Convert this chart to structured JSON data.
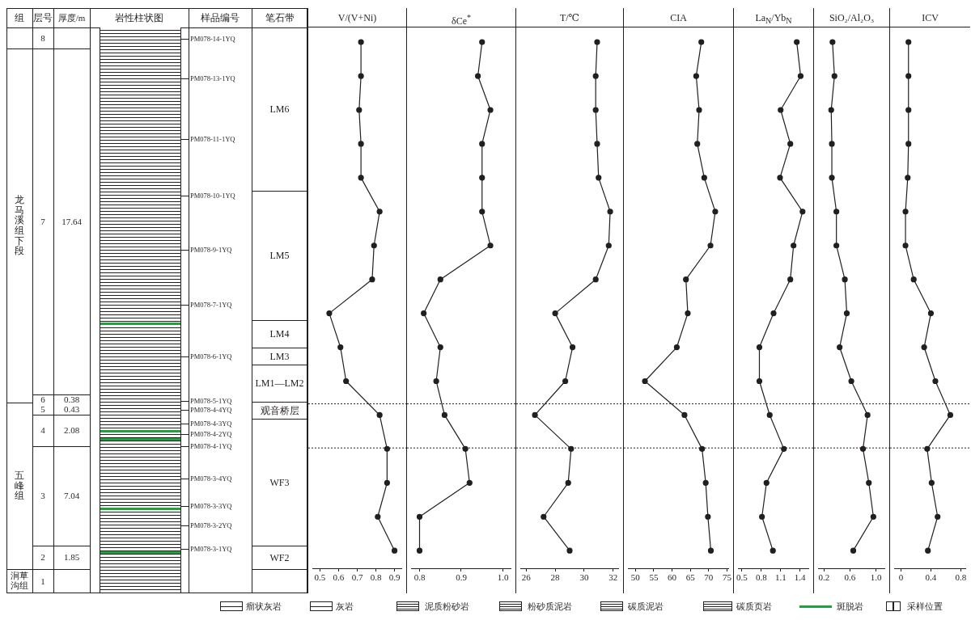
{
  "chart_data": [
    {
      "type": "other",
      "annotations": [
        "组",
        "层号",
        "厚度/m",
        "岩性柱状图",
        "样品编号",
        "笔石带",
        "龙马溪组下段",
        "五峰组",
        "涧草沟组",
        "8",
        "7",
        "6",
        "5",
        "4",
        "3",
        "2",
        "1",
        "17.64",
        "0.38",
        "0.43",
        "2.08",
        "7.04",
        "1.85",
        "PM078-14-1YQ",
        "PM078-13-1YQ",
        "PM078-11-1YQ",
        "PM078-10-1YQ",
        "PM078-9-1YQ",
        "PM078-7-1YQ",
        "PM078-6-1YQ",
        "PM078-5-1YQ",
        "PM078-4-4YQ",
        "PM078-4-3YQ",
        "PM078-4-2YQ",
        "PM078-4-1YQ",
        "PM078-3-4YQ",
        "PM078-3-3YQ",
        "PM078-3-2YQ",
        "PM078-3-1YQ",
        "LM6",
        "LM5",
        "LM4",
        "LM3",
        "LM1—LM2",
        "观音桥层",
        "WF3",
        "WF2",
        "瘤状灰岩",
        "灰岩",
        "泥质粉砂岩",
        "粉砂质泥岩",
        "碳质泥岩",
        "碳质页岩",
        "斑脱岩",
        "采样位置"
      ]
    },
    {
      "type": "line",
      "title": "V/(V+Ni)",
      "orientation": "horizontal",
      "categories": [
        null,
        null,
        null,
        null,
        null,
        null,
        null,
        null,
        null,
        null,
        null,
        null,
        null,
        null,
        null,
        null
      ],
      "tick_labels": "x",
      "color": "#231f20",
      "marker": "circle",
      "line_style": "solid",
      "grid": false,
      "legend": false,
      "values": [
        0.72,
        0.72,
        0.71,
        0.72,
        0.72,
        0.82,
        0.79,
        0.78,
        0.55,
        0.61,
        0.64,
        0.82,
        0.86,
        0.86,
        0.81,
        0.9
      ],
      "xlim": [
        0.46,
        0.94
      ],
      "xticks": [
        0.5,
        0.6,
        0.7,
        0.8,
        0.9
      ]
    },
    {
      "type": "line",
      "title": "δCe$^{*}$",
      "orientation": "horizontal",
      "categories": [
        null,
        null,
        null,
        null,
        null,
        null,
        null,
        null,
        null,
        null,
        null,
        null,
        null,
        null,
        null,
        null
      ],
      "tick_labels": "x",
      "color": "#231f20",
      "marker": "circle",
      "line_style": "solid",
      "grid": false,
      "legend": false,
      "values": [
        0.95,
        0.94,
        0.97,
        0.95,
        0.95,
        0.95,
        0.97,
        0.85,
        0.81,
        0.85,
        0.84,
        0.86,
        0.91,
        0.92,
        0.8,
        0.8
      ],
      "xlim": [
        0.78,
        1.02
      ],
      "xticks": [
        0.8,
        0.9,
        {
          "value": 1,
          "label": "1.0"
        }
      ]
    },
    {
      "type": "line",
      "title": "T/℃",
      "orientation": "horizontal",
      "categories": [
        null,
        null,
        null,
        null,
        null,
        null,
        null,
        null,
        null,
        null,
        null,
        null,
        null,
        null,
        null,
        null
      ],
      "tick_labels": "x",
      "color": "#231f20",
      "marker": "circle",
      "line_style": "solid",
      "grid": false,
      "legend": false,
      "values": [
        30.9,
        30.8,
        30.8,
        30.9,
        31.0,
        31.8,
        31.7,
        30.8,
        28.0,
        29.2,
        28.7,
        26.6,
        29.1,
        28.9,
        27.2,
        29.0
      ],
      "xlim": [
        25.6,
        32.4
      ],
      "xticks": [
        26,
        28,
        30,
        32
      ]
    },
    {
      "type": "line",
      "title": "CIA",
      "orientation": "horizontal",
      "categories": [
        null,
        null,
        null,
        null,
        null,
        null,
        null,
        null,
        null,
        null,
        null,
        null,
        null,
        null,
        null,
        null
      ],
      "tick_labels": "x",
      "color": "#231f20",
      "marker": "circle",
      "line_style": "solid",
      "grid": false,
      "legend": false,
      "values": [
        68.0,
        66.6,
        67.4,
        66.9,
        68.8,
        71.8,
        70.5,
        63.8,
        64.3,
        61.3,
        52.6,
        63.4,
        68.2,
        69.2,
        69.8,
        70.6
      ],
      "xlim": [
        48,
        75.5
      ],
      "xticks": [
        50,
        55,
        60,
        65,
        70,
        75
      ]
    },
    {
      "type": "line",
      "title": "La$_{N}$/Yb$_{N}$",
      "orientation": "horizontal",
      "categories": [
        null,
        null,
        null,
        null,
        null,
        null,
        null,
        null,
        null,
        null,
        null,
        null,
        null,
        null,
        null,
        null
      ],
      "tick_labels": "x",
      "color": "#231f20",
      "marker": "circle",
      "line_style": "solid",
      "grid": false,
      "legend": false,
      "values": [
        1.35,
        1.41,
        1.1,
        1.25,
        1.09,
        1.44,
        1.3,
        1.25,
        0.99,
        0.77,
        0.77,
        0.93,
        1.15,
        0.88,
        0.81,
        0.98
      ],
      "xlim": [
        0.44,
        1.54
      ],
      "xticks": [
        0.5,
        0.8,
        1.1,
        1.4
      ]
    },
    {
      "type": "line",
      "title": "SiO₂/Al₂O₃",
      "orientation": "horizontal",
      "categories": [
        null,
        null,
        null,
        null,
        null,
        null,
        null,
        null,
        null,
        null,
        null,
        null,
        null,
        null,
        null,
        null
      ],
      "tick_labels": "x",
      "color": "#231f20",
      "marker": "circle",
      "line_style": "solid",
      "grid": false,
      "legend": false,
      "values": [
        0.33,
        0.36,
        0.31,
        0.32,
        0.32,
        0.39,
        0.39,
        0.52,
        0.55,
        0.44,
        0.62,
        0.87,
        0.8,
        0.89,
        0.96,
        0.65
      ],
      "xlim": [
        0.11,
        1.14
      ],
      "xticks": [
        0.2,
        0.6,
        {
          "value": 1,
          "label": "1.0"
        }
      ]
    },
    {
      "type": "line",
      "title": "ICV",
      "orientation": "horizontal",
      "categories": [
        null,
        null,
        null,
        null,
        null,
        null,
        null,
        null,
        null,
        null,
        null,
        null,
        null,
        null,
        null,
        null
      ],
      "tick_labels": "x",
      "color": "#231f20",
      "marker": "circle",
      "line_style": "solid",
      "grid": false,
      "legend": false,
      "values": [
        0.1,
        0.1,
        0.1,
        0.1,
        0.09,
        0.06,
        0.06,
        0.17,
        0.4,
        0.31,
        0.46,
        0.66,
        0.35,
        0.41,
        0.49,
        0.36
      ],
      "xlim": [
        -0.09,
        0.87
      ],
      "xticks": [
        0,
        0.4,
        0.8
      ]
    }
  ]
}
